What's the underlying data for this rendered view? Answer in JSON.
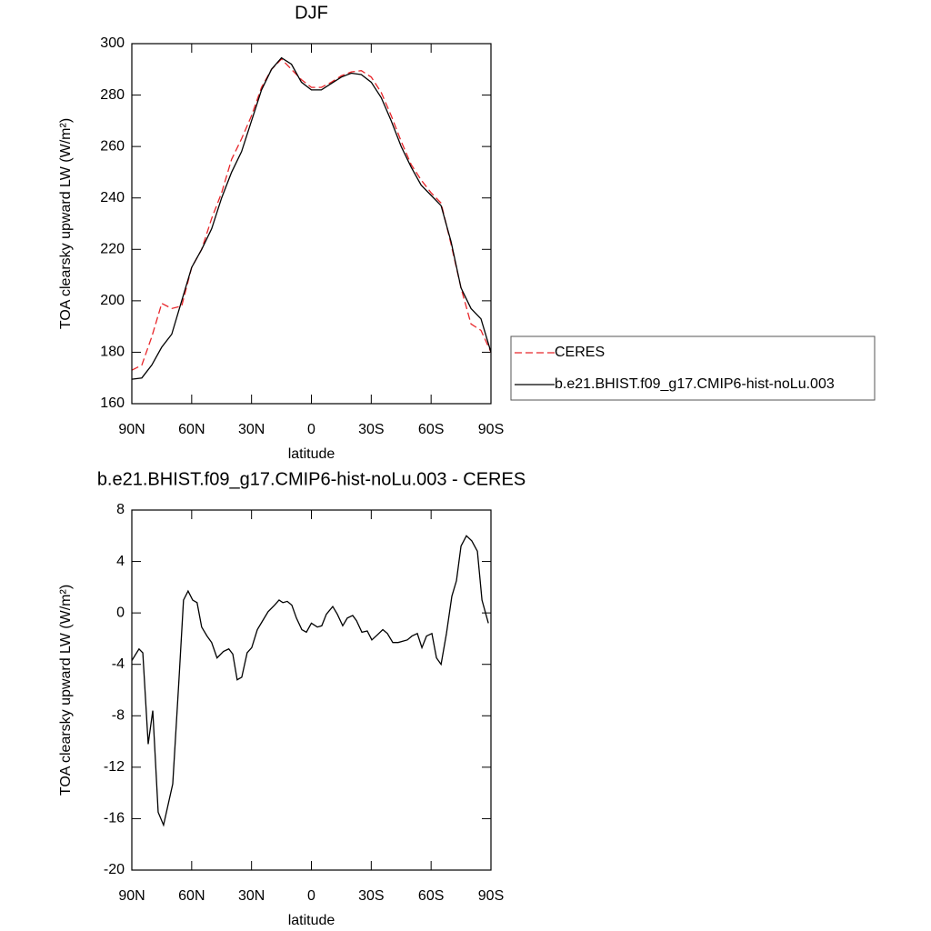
{
  "chart_data": [
    {
      "type": "line",
      "title": "DJF",
      "xlabel": "latitude",
      "ylabel": "TOA clearsky upward LW (W/m²)",
      "x": [
        90,
        85,
        80,
        75,
        70,
        65,
        60,
        55,
        50,
        45,
        40,
        35,
        30,
        25,
        20,
        15,
        10,
        5,
        0,
        -5,
        -10,
        -15,
        -20,
        -25,
        -30,
        -35,
        -40,
        -45,
        -50,
        -55,
        -60,
        -65,
        -70,
        -75,
        -80,
        -85,
        -90
      ],
      "series": [
        {
          "name": "CERES",
          "color": "#e8262a",
          "dash": true,
          "values": [
            173,
            175,
            186,
            199,
            197,
            198,
            213,
            220,
            232,
            242,
            255,
            263,
            272,
            283,
            290,
            294,
            290,
            286,
            283,
            283,
            285,
            287.5,
            289,
            289.5,
            287,
            281,
            272,
            262,
            253,
            247,
            242,
            238,
            222,
            205,
            191,
            188.5,
            180
          ]
        },
        {
          "name": "b.e21.BHIST.f09_g17.CMIP6-hist-noLu.003",
          "color": "#000000",
          "dash": false,
          "values": [
            169.5,
            170,
            175,
            182,
            187,
            200,
            213,
            220,
            228,
            240,
            250,
            258,
            270,
            282,
            290,
            294.5,
            292,
            285,
            282,
            282,
            284.5,
            287,
            288.5,
            288,
            285,
            279,
            270,
            260,
            252,
            245,
            241,
            237,
            223,
            205,
            197,
            193,
            180
          ]
        }
      ],
      "xlim": [
        90,
        -90
      ],
      "xticks": [
        {
          "value": 90,
          "label": "90N"
        },
        {
          "value": 60,
          "label": "60N"
        },
        {
          "value": 30,
          "label": "30N"
        },
        0,
        {
          "value": -30,
          "label": "30S"
        },
        {
          "value": -60,
          "label": "60S"
        },
        {
          "value": -90,
          "label": "90S"
        }
      ],
      "ylim": [
        160,
        300
      ],
      "yticks": [
        160,
        180,
        200,
        220,
        240,
        260,
        280,
        300
      ],
      "legend": "right"
    },
    {
      "type": "line",
      "title": "b.e21.BHIST.f09_g17.CMIP6-hist-noLu.003 - CERES",
      "xlabel": "latitude",
      "ylabel": "TOA clearsky upward LW (W/m²)",
      "x": [
        90,
        86.4,
        84.5,
        81.8,
        79.5,
        76.8,
        74.1,
        69.5,
        66.3,
        64.1,
        61.8,
        59.5,
        57.3,
        55,
        52.3,
        50,
        47.3,
        44.1,
        41.4,
        39.4,
        37.2,
        34.9,
        32.2,
        29.9,
        27.1,
        24.4,
        21.7,
        18.5,
        16.2,
        14.3,
        12.1,
        9.8,
        7.5,
        4.8,
        2.5,
        0,
        -3,
        -5.2,
        -7.5,
        -10.7,
        -13,
        -15.7,
        -18,
        -20.7,
        -22.6,
        -25.3,
        -28,
        -30.3,
        -33.1,
        -35.8,
        -38.1,
        -40.8,
        -43.5,
        -45.8,
        -48.1,
        -50.4,
        -53.1,
        -55.4,
        -57.7,
        -60.4,
        -62.7,
        -65,
        -67.7,
        -70.4,
        -72.7,
        -75,
        -77.7,
        -80.4,
        -83.2,
        -85.5,
        -88.7
      ],
      "series": [
        {
          "name": "b.e21.BHIST.f09_g17.CMIP6-hist-noLu.003 - CERES",
          "color": "#000000",
          "dash": false,
          "values": [
            -3.7,
            -2.8,
            -3.1,
            -10.2,
            -7.6,
            -15.5,
            -16.5,
            -13.3,
            -5,
            1,
            1.7,
            1,
            0.8,
            -1.1,
            -1.8,
            -2.3,
            -3.5,
            -3,
            -2.8,
            -3.2,
            -5.2,
            -5,
            -3.1,
            -2.7,
            -1.3,
            -0.6,
            0.1,
            0.6,
            1,
            0.8,
            0.9,
            0.6,
            -0.4,
            -1.3,
            -1.5,
            -0.8,
            -1.1,
            -1,
            -0.1,
            0.5,
            -0.1,
            -1,
            -0.4,
            -0.2,
            -0.6,
            -1.5,
            -1.4,
            -2.1,
            -1.7,
            -1.3,
            -1.6,
            -2.3,
            -2.3,
            -2.2,
            -2.1,
            -1.8,
            -1.6,
            -2.7,
            -1.8,
            -1.6,
            -3.5,
            -4,
            -1.6,
            1.3,
            2.5,
            5.2,
            6,
            5.6,
            4.8,
            1,
            -0.8
          ]
        }
      ],
      "xlim": [
        90,
        -90
      ],
      "xticks": [
        {
          "value": 90,
          "label": "90N"
        },
        {
          "value": 60,
          "label": "60N"
        },
        {
          "value": 30,
          "label": "30N"
        },
        0,
        {
          "value": -30,
          "label": "30S"
        },
        {
          "value": -60,
          "label": "60S"
        },
        {
          "value": -90,
          "label": "90S"
        }
      ],
      "ylim": [
        -20,
        8
      ],
      "yticks": [
        -20,
        -16,
        -12,
        -8,
        -4,
        0,
        4,
        8
      ]
    }
  ]
}
